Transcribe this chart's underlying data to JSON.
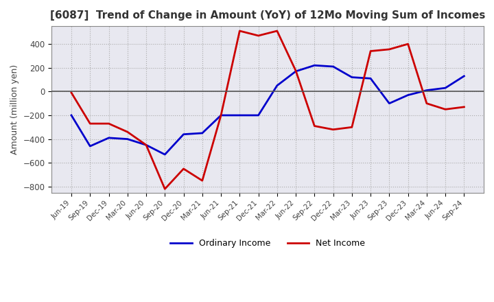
{
  "title": "[6087]  Trend of Change in Amount (YoY) of 12Mo Moving Sum of Incomes",
  "ylabel": "Amount (million yen)",
  "ylim": [
    -850,
    550
  ],
  "yticks": [
    -800,
    -600,
    -400,
    -200,
    0,
    200,
    400
  ],
  "x_labels": [
    "Jun-19",
    "Sep-19",
    "Dec-19",
    "Mar-20",
    "Jun-20",
    "Sep-20",
    "Dec-20",
    "Mar-21",
    "Jun-21",
    "Sep-21",
    "Dec-21",
    "Mar-22",
    "Jun-22",
    "Sep-22",
    "Dec-22",
    "Mar-23",
    "Jun-23",
    "Sep-23",
    "Dec-23",
    "Mar-24",
    "Jun-24",
    "Sep-24"
  ],
  "ordinary_income": [
    -200,
    -460,
    -390,
    -400,
    -450,
    -530,
    -360,
    -350,
    -200,
    -200,
    -200,
    50,
    170,
    220,
    210,
    120,
    110,
    -100,
    -30,
    10,
    30,
    130
  ],
  "net_income": [
    -10,
    -270,
    -270,
    -340,
    -450,
    -820,
    -650,
    -750,
    -200,
    510,
    470,
    510,
    175,
    -290,
    -320,
    -300,
    340,
    355,
    400,
    -100,
    -150,
    -130
  ],
  "ordinary_color": "#0000cc",
  "net_color": "#cc0000",
  "background_color": "#ffffff",
  "plot_bg_color": "#e8e8f0",
  "grid_color": "#aaaaaa",
  "title_color": "#333333",
  "zero_line_color": "#555555",
  "legend_labels": [
    "Ordinary Income",
    "Net Income"
  ]
}
